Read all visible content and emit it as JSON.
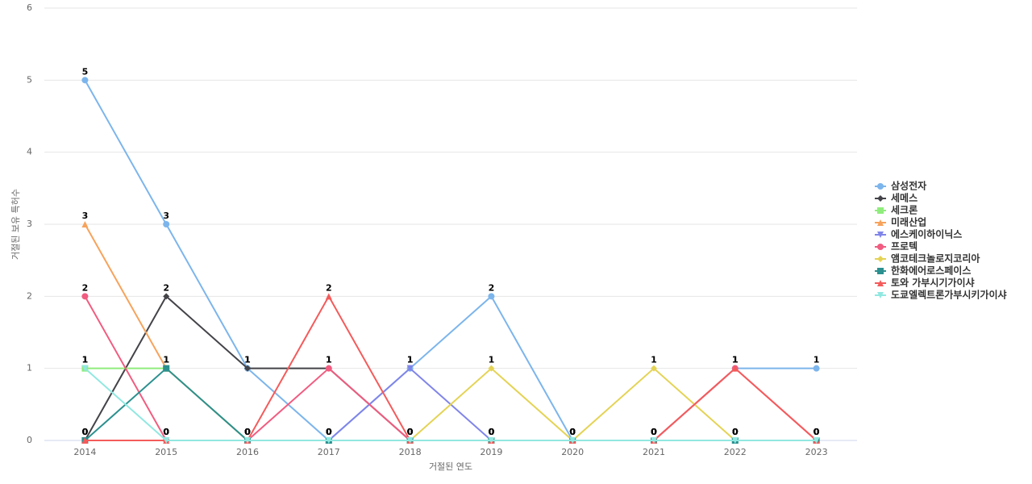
{
  "chart_data": {
    "type": "line",
    "x_label": "거절된 연도",
    "y_label": "거절된 보유 특허수",
    "categories": [
      "2014",
      "2015",
      "2016",
      "2017",
      "2018",
      "2019",
      "2020",
      "2021",
      "2022",
      "2023"
    ],
    "ylim": [
      0,
      6
    ],
    "yticks": [
      0,
      1,
      2,
      3,
      4,
      5,
      6
    ],
    "grid": true,
    "legend": "right",
    "series": [
      {
        "name": "삼성전자",
        "color": "#7cb5ec",
        "marker": "circle",
        "values": [
          5,
          3,
          1,
          0,
          1,
          2,
          0,
          0,
          1,
          1
        ]
      },
      {
        "name": "세메스",
        "color": "#434348",
        "marker": "diamond",
        "values": [
          0,
          2,
          1,
          1,
          0,
          0,
          0,
          0,
          0,
          0
        ]
      },
      {
        "name": "세크론",
        "color": "#90ed7d",
        "marker": "square",
        "values": [
          1,
          1,
          0,
          0,
          0,
          0,
          0,
          0,
          0,
          0
        ]
      },
      {
        "name": "미래산업",
        "color": "#f7a35c",
        "marker": "triangle",
        "values": [
          3,
          1,
          0,
          0,
          0,
          0,
          0,
          0,
          0,
          0
        ]
      },
      {
        "name": "에스케이하이닉스",
        "color": "#8085e9",
        "marker": "triangle-down",
        "values": [
          0,
          0,
          0,
          0,
          1,
          0,
          0,
          0,
          0,
          0
        ]
      },
      {
        "name": "프로텍",
        "color": "#f15c80",
        "marker": "circle",
        "values": [
          2,
          0,
          0,
          1,
          0,
          0,
          0,
          0,
          1,
          0
        ]
      },
      {
        "name": "앰코테크놀로지코리아",
        "color": "#e4d354",
        "marker": "diamond",
        "values": [
          0,
          0,
          0,
          0,
          0,
          1,
          0,
          1,
          0,
          0
        ]
      },
      {
        "name": "한화에어로스페이스",
        "color": "#2b908f",
        "marker": "square",
        "values": [
          0,
          1,
          0,
          0,
          0,
          0,
          0,
          0,
          0,
          0
        ]
      },
      {
        "name": "토와 가부시기가이샤",
        "color": "#f45b5b",
        "marker": "triangle",
        "values": [
          0,
          0,
          0,
          2,
          0,
          0,
          0,
          0,
          1,
          0
        ]
      },
      {
        "name": "도쿄엘렉트론가부시키가이샤",
        "color": "#91e8e1",
        "marker": "triangle-down",
        "values": [
          1,
          0,
          0,
          0,
          0,
          0,
          0,
          0,
          0,
          0
        ]
      }
    ]
  }
}
